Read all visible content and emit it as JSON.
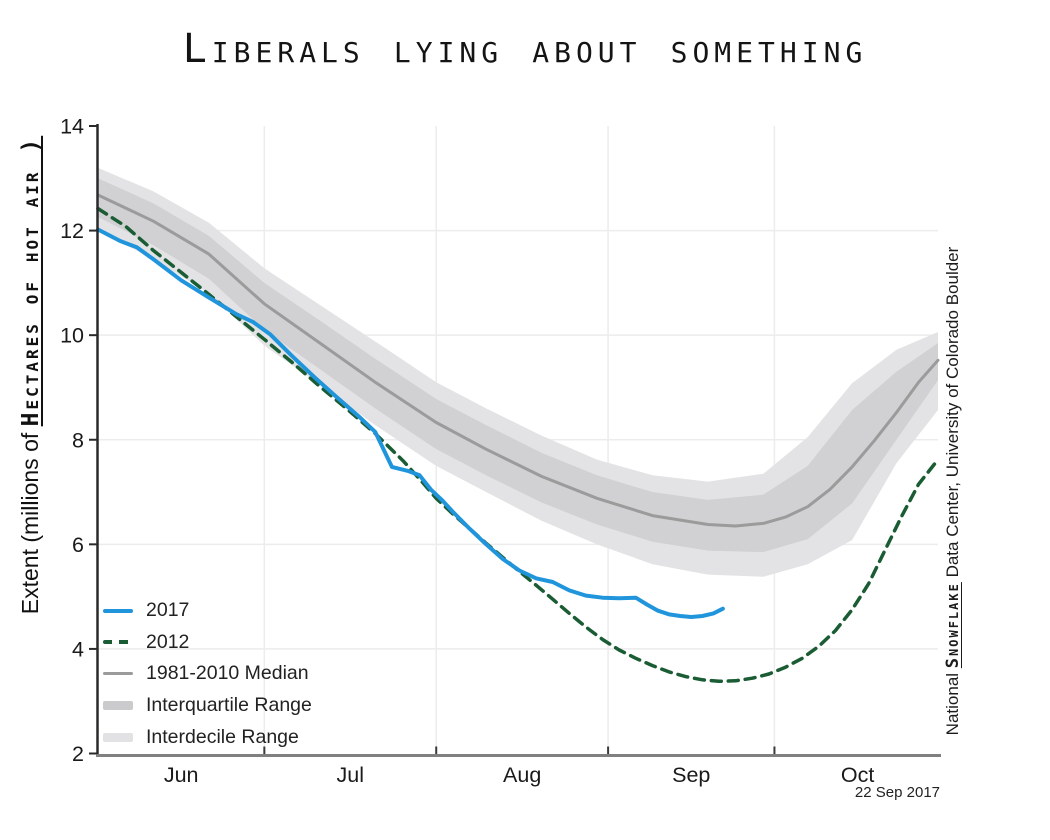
{
  "title": "Liberals lying about something",
  "y_axis_label": {
    "prefix": "Extent (millions of ",
    "emphasis": "Hectares of hot air )"
  },
  "right_label": {
    "prefix": "National ",
    "emphasis": "Snowflake",
    "suffix": " Data Center, University of Colorado Boulder"
  },
  "date_stamp": "22 Sep 2017",
  "legend": [
    {
      "label": "2017",
      "type": "line",
      "color": "#2095dc",
      "thickness": 4
    },
    {
      "label": "2012",
      "type": "dashed",
      "color": "#1a5c33",
      "thickness": 4
    },
    {
      "label": "1981-2010 Median",
      "type": "line",
      "color": "#9b9b9b",
      "thickness": 3
    },
    {
      "label": "Interquartile Range",
      "type": "band",
      "color": "#cbcbcd",
      "thickness": 9
    },
    {
      "label": "Interdecile Range",
      "type": "band",
      "color": "#e2e2e4",
      "thickness": 9
    }
  ],
  "chart_data": {
    "type": "line",
    "title": "Liberals lying about something",
    "xlabel": "",
    "ylabel": "Extent (millions of Hectares of hot air )",
    "ylim": [
      2,
      14
    ],
    "yticks": [
      2,
      4,
      6,
      8,
      10,
      12,
      14
    ],
    "grid_y": [
      4,
      6,
      8,
      10,
      12
    ],
    "x_unit_note": "days since Jun 1",
    "xlim": [
      0,
      151.5
    ],
    "month_boundaries": [
      30,
      61,
      92,
      122
    ],
    "month_labels": [
      {
        "label": "Jun",
        "day": 15
      },
      {
        "label": "Jul",
        "day": 45.5
      },
      {
        "label": "Aug",
        "day": 76.5
      },
      {
        "label": "Sep",
        "day": 107
      },
      {
        "label": "Oct",
        "day": 137
      }
    ],
    "legend_position": "lower-left",
    "grid": true,
    "bands": [
      {
        "name": "Interdecile Range",
        "color": "#e3e3e5",
        "x": [
          0,
          10,
          20,
          30,
          40,
          50,
          61,
          70,
          80,
          90,
          100,
          110,
          120,
          128,
          136,
          144,
          151.5
        ],
        "upper": [
          13.2,
          12.75,
          12.15,
          11.28,
          10.58,
          9.88,
          9.1,
          8.6,
          8.08,
          7.62,
          7.32,
          7.2,
          7.35,
          8.05,
          9.08,
          9.72,
          10.06
        ],
        "lower": [
          12.0,
          11.45,
          10.8,
          9.8,
          9.05,
          8.28,
          7.5,
          7.0,
          6.45,
          6.0,
          5.62,
          5.42,
          5.38,
          5.62,
          6.08,
          7.55,
          8.57
        ]
      },
      {
        "name": "Interquartile Range",
        "color": "#d1d1d3",
        "x": [
          0,
          10,
          20,
          30,
          40,
          50,
          61,
          70,
          80,
          90,
          100,
          110,
          120,
          128,
          136,
          144,
          151.5
        ],
        "upper": [
          13.0,
          12.52,
          11.9,
          11.0,
          10.28,
          9.55,
          8.78,
          8.28,
          7.75,
          7.32,
          7.0,
          6.85,
          6.95,
          7.5,
          8.57,
          9.3,
          9.85
        ],
        "lower": [
          12.26,
          11.72,
          11.08,
          10.1,
          9.35,
          8.6,
          7.82,
          7.32,
          6.8,
          6.38,
          6.05,
          5.88,
          5.85,
          6.1,
          6.78,
          8.0,
          9.14
        ]
      }
    ],
    "series": [
      {
        "name": "1981-2010 Median",
        "color": "#9b9b9b",
        "style": "solid",
        "width": 3,
        "x": [
          0,
          10,
          20,
          30,
          40,
          50,
          61,
          70,
          80,
          90,
          100,
          110,
          115,
          120,
          124,
          128,
          132,
          136,
          140,
          144,
          148,
          151.5
        ],
        "y": [
          12.68,
          12.18,
          11.55,
          10.6,
          9.85,
          9.1,
          8.33,
          7.82,
          7.3,
          6.88,
          6.55,
          6.38,
          6.35,
          6.4,
          6.52,
          6.72,
          7.05,
          7.48,
          7.98,
          8.52,
          9.1,
          9.52
        ]
      },
      {
        "name": "2012",
        "color": "#1a5c33",
        "style": "dashed",
        "width": 3.5,
        "x": [
          0,
          5,
          10,
          15,
          20,
          25,
          30,
          35,
          40,
          45,
          50,
          55,
          58,
          61,
          64,
          67,
          70,
          73,
          76,
          79,
          82,
          85,
          88,
          91,
          94,
          97,
          100,
          103,
          106,
          109,
          112,
          115,
          118,
          121,
          124,
          127,
          130,
          133,
          136,
          139,
          142,
          145,
          148,
          151.5
        ],
        "y": [
          12.42,
          12.08,
          11.62,
          11.2,
          10.78,
          10.35,
          9.92,
          9.48,
          9.02,
          8.58,
          8.12,
          7.6,
          7.25,
          6.88,
          6.58,
          6.3,
          6.02,
          5.75,
          5.48,
          5.22,
          4.95,
          4.68,
          4.42,
          4.18,
          3.98,
          3.82,
          3.68,
          3.56,
          3.47,
          3.41,
          3.38,
          3.39,
          3.44,
          3.52,
          3.65,
          3.82,
          4.05,
          4.35,
          4.75,
          5.25,
          5.9,
          6.55,
          7.15,
          7.62
        ]
      },
      {
        "name": "2017",
        "color": "#2095dc",
        "style": "solid",
        "width": 4,
        "x": [
          0,
          4,
          7,
          10,
          15,
          20,
          25,
          28,
          31,
          35,
          39,
          43,
          47,
          50,
          53,
          56,
          58,
          60,
          62,
          64,
          67,
          70,
          73,
          76,
          79,
          82,
          85,
          88,
          91,
          94,
          97,
          99,
          101,
          103,
          105,
          107,
          109,
          111,
          112.7
        ],
        "y": [
          12.02,
          11.8,
          11.68,
          11.45,
          11.05,
          10.72,
          10.4,
          10.25,
          10.02,
          9.6,
          9.2,
          8.82,
          8.45,
          8.15,
          7.48,
          7.4,
          7.32,
          7.05,
          6.85,
          6.62,
          6.3,
          6.0,
          5.72,
          5.5,
          5.35,
          5.28,
          5.12,
          5.02,
          4.98,
          4.97,
          4.98,
          4.85,
          4.73,
          4.66,
          4.63,
          4.61,
          4.63,
          4.68,
          4.77
        ]
      }
    ],
    "date_stamp": "22 Sep 2017"
  }
}
